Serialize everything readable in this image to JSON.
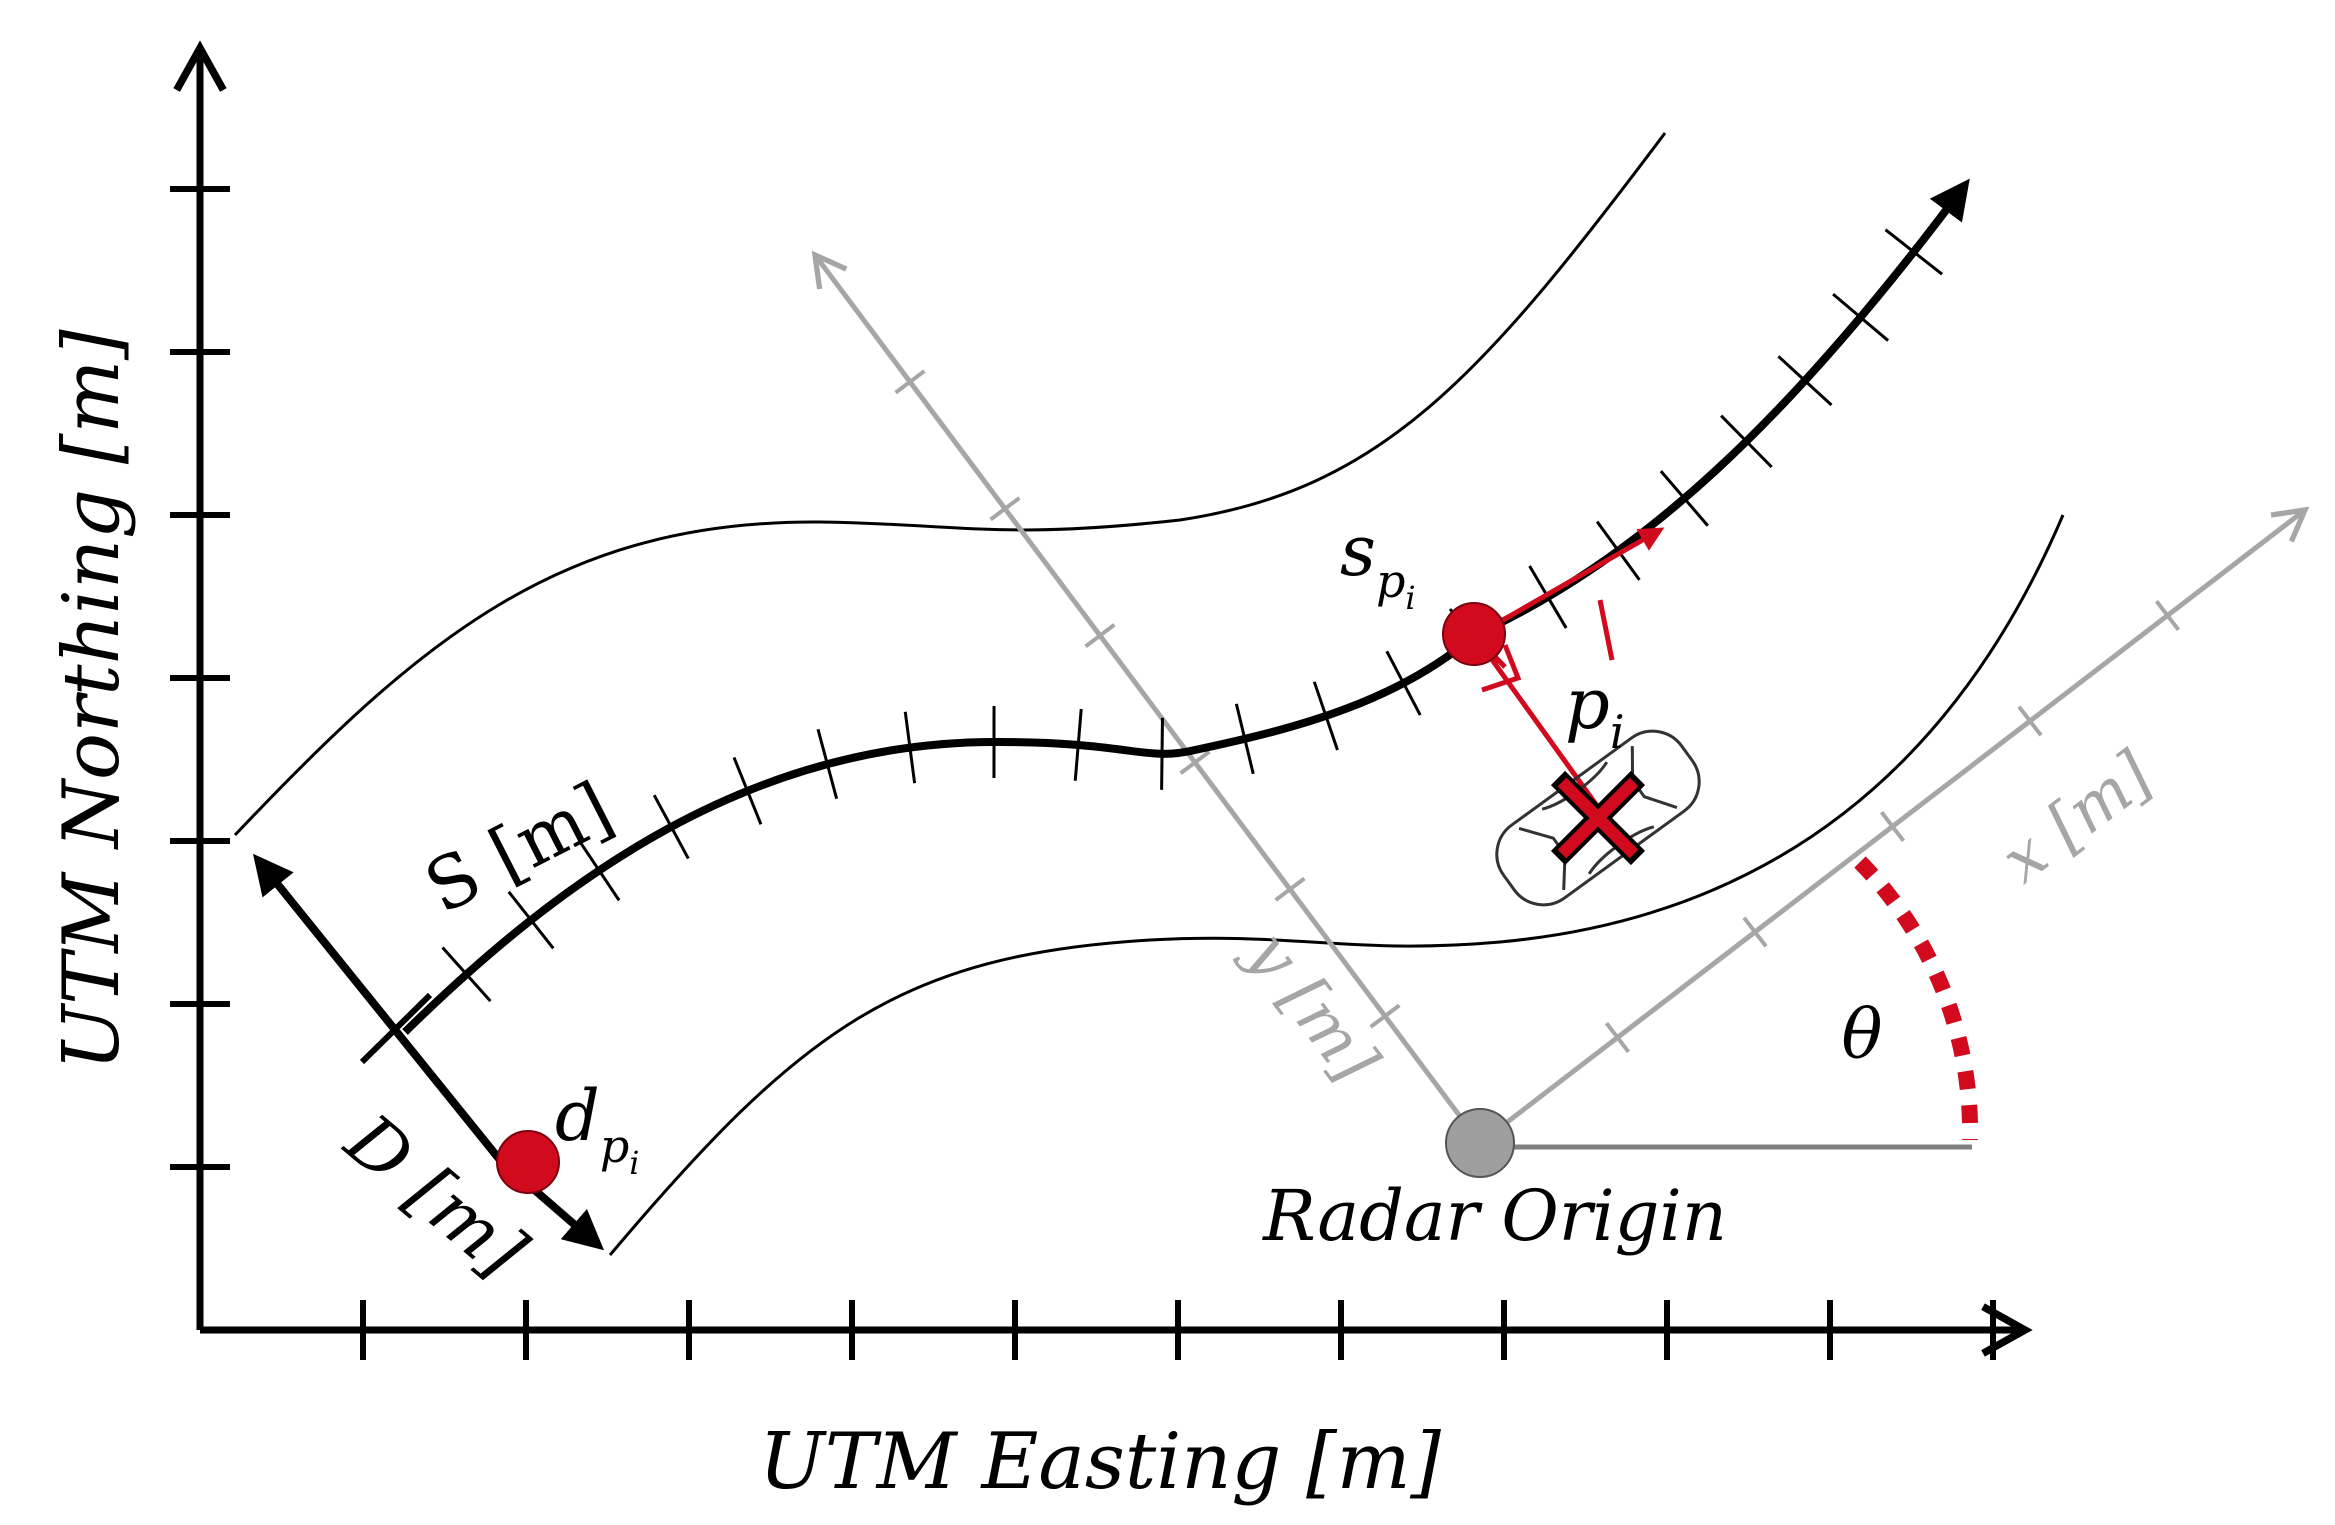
{
  "figure": {
    "global_axes": {
      "x_label": "UTM Easting [m]",
      "y_label": "UTM Northing [m]"
    },
    "road_axes": {
      "s_label": "S [m]",
      "d_label": "D [m]",
      "s_point_label": "s",
      "s_point_subscript": "p",
      "s_point_subsub": "i",
      "d_point_label": "d",
      "d_point_subscript": "p",
      "d_point_subsub": "i",
      "target_label": "p",
      "target_subscript": "i"
    },
    "radar_axes": {
      "x_label": "x [m]",
      "y_label": "y [m]",
      "origin_label": "Radar Origin",
      "angle_label": "θ"
    },
    "colors": {
      "axis": "#000000",
      "radar_axis": "#a6a6a6",
      "highlight": "#d10a1e",
      "origin_fill": "#9e9e9e"
    }
  }
}
